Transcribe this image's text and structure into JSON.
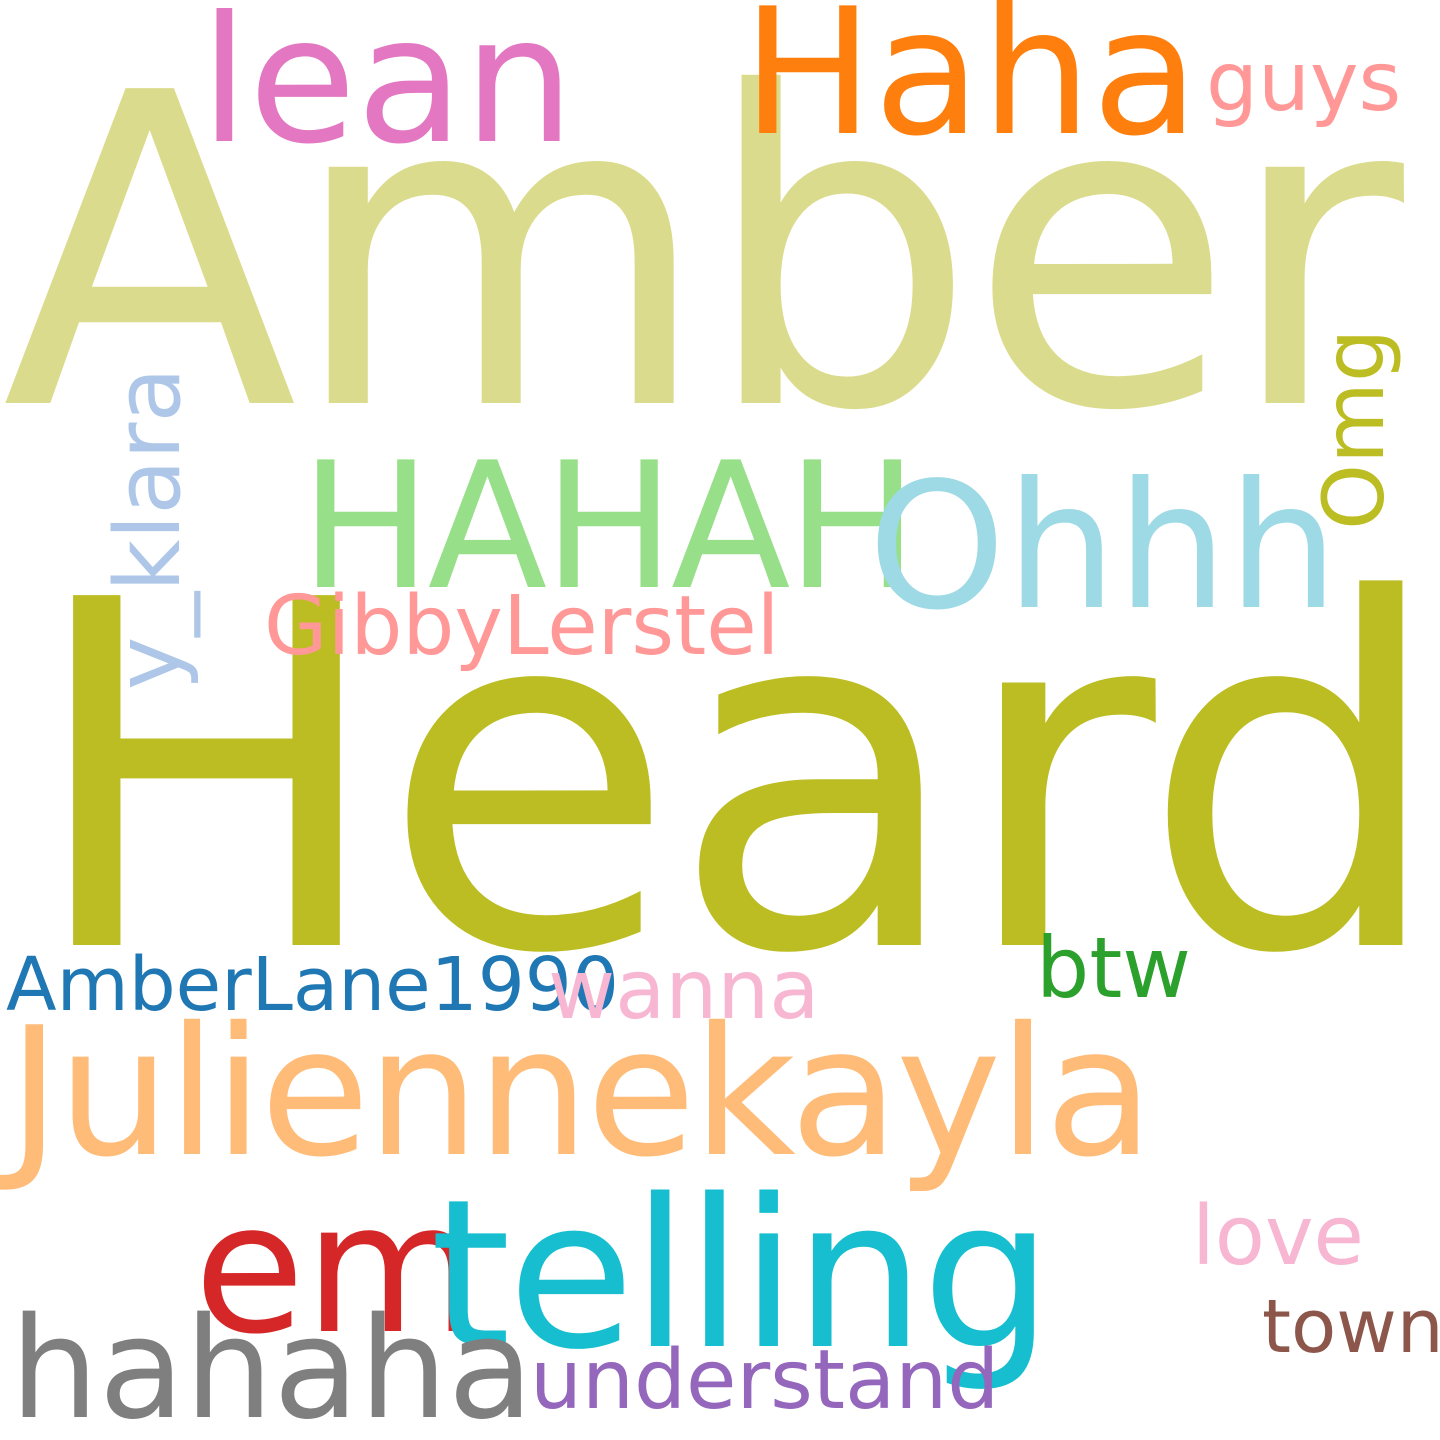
{
  "words": {
    "amber": {
      "text": "Amber",
      "color": "#dbdb8d"
    },
    "heard": {
      "text": "Heard",
      "color": "#bcbd22"
    },
    "lean": {
      "text": "lean",
      "color": "#e377c2"
    },
    "haha_cap": {
      "text": "Haha",
      "color": "#ff7f0e"
    },
    "guys": {
      "text": "guys",
      "color": "#ff9896"
    },
    "hahah": {
      "text": "HAHAH",
      "color": "#98df8a"
    },
    "ohhh": {
      "text": "Ohhh",
      "color": "#9edae5"
    },
    "omg": {
      "text": "Omg",
      "color": "#bcbd22"
    },
    "y_klara": {
      "text": "y_klara",
      "color": "#aec7e8"
    },
    "gibby": {
      "text": "GibbyLerstel",
      "color": "#ff9896"
    },
    "amberlane": {
      "text": "AmberLane1990",
      "color": "#1f77b4"
    },
    "wanna": {
      "text": "wanna",
      "color": "#f7b6d2"
    },
    "btw": {
      "text": "btw",
      "color": "#2ca02c"
    },
    "julienne": {
      "text": "Juliennekayla",
      "color": "#ffbb78"
    },
    "em": {
      "text": "em",
      "color": "#d62728"
    },
    "telling": {
      "text": "telling",
      "color": "#17becf"
    },
    "love": {
      "text": "love",
      "color": "#f7b6d2"
    },
    "town": {
      "text": "town",
      "color": "#8c564b"
    },
    "hahaha": {
      "text": "hahaha",
      "color": "#7f7f7f"
    },
    "understand": {
      "text": "understand",
      "color": "#9467bd"
    }
  }
}
